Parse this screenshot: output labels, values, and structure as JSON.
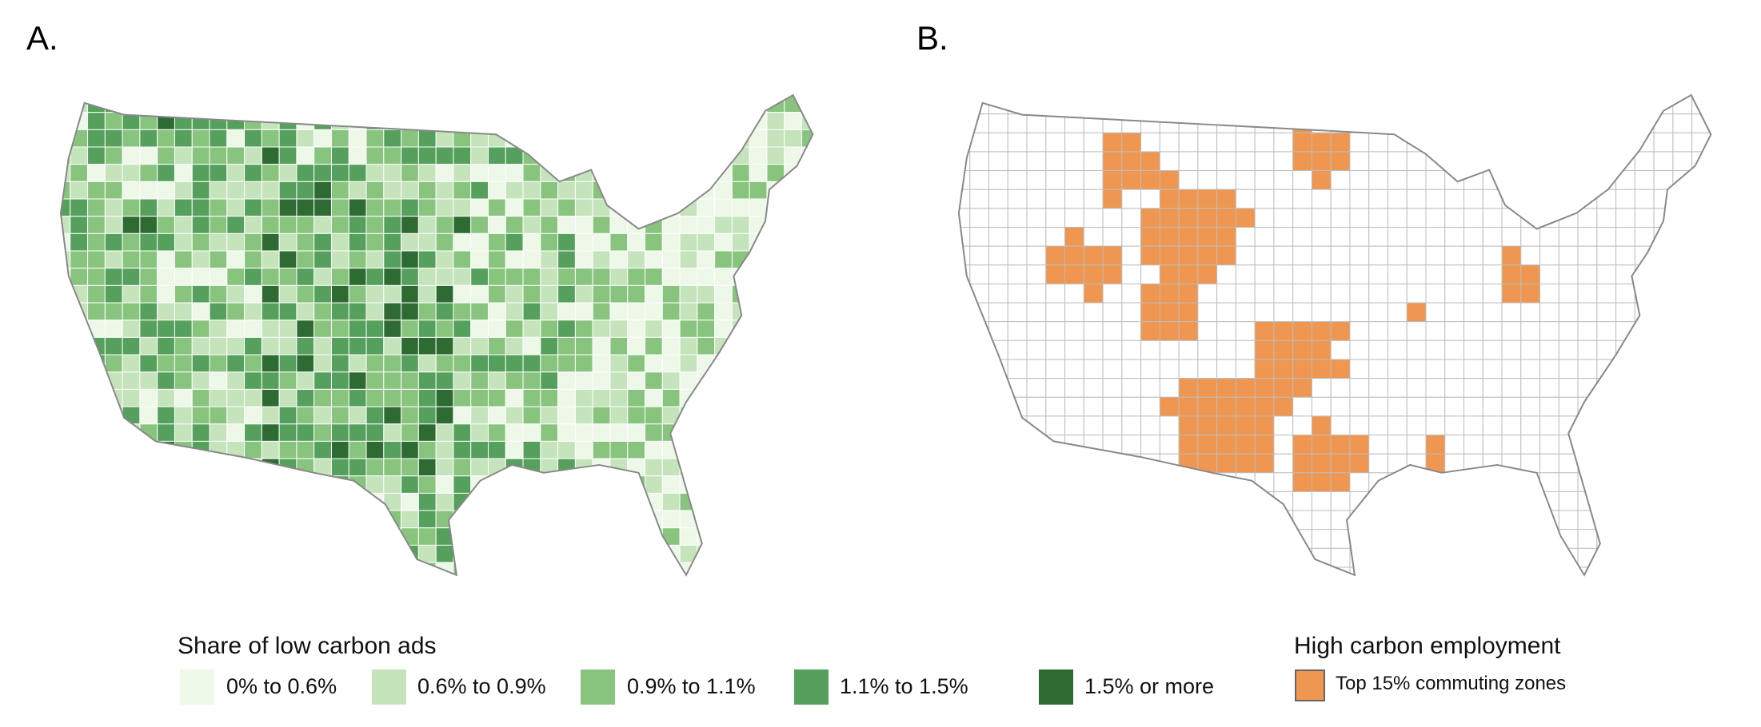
{
  "panels": [
    {
      "label": "A."
    },
    {
      "label": "B."
    }
  ],
  "legend_a": {
    "title": "Share of low carbon ads",
    "items": [
      {
        "label": "0% to 0.6%",
        "color": "#edf8e9"
      },
      {
        "label": "0.6% to 0.9%",
        "color": "#c5e4bb"
      },
      {
        "label": "0.9% to 1.1%",
        "color": "#89c47f"
      },
      {
        "label": "1.1% to 1.5%",
        "color": "#55a05c"
      },
      {
        "label": "1.5% or more",
        "color": "#2e6b33"
      }
    ]
  },
  "legend_b": {
    "title": "High carbon employment",
    "items": [
      {
        "label": "Top 15% commuting zones",
        "color": "#ef9650"
      }
    ]
  }
}
